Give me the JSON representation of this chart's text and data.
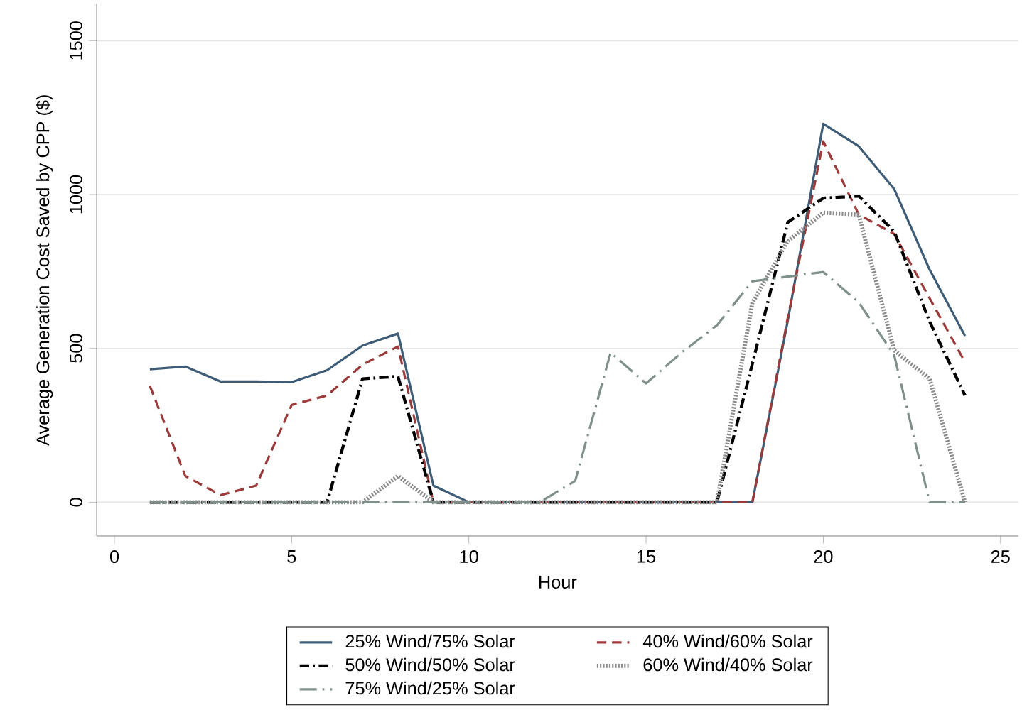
{
  "chart_data": {
    "type": "line",
    "xlabel": "Hour",
    "ylabel": "Average Generation Cost Saved by CPP ($)",
    "x": [
      1,
      2,
      3,
      4,
      5,
      6,
      7,
      8,
      9,
      10,
      11,
      12,
      13,
      14,
      15,
      16,
      17,
      18,
      19,
      20,
      21,
      22,
      23,
      24
    ],
    "xlim": [
      -0.5,
      25.5
    ],
    "ylim": [
      -110,
      1620
    ],
    "xticks": [
      0,
      5,
      10,
      15,
      20,
      25
    ],
    "yticks": [
      0,
      500,
      1000,
      1500
    ],
    "grid": "y",
    "legend": "bottom",
    "marker": "none",
    "series": [
      {
        "name": "25% Wind/75% Solar",
        "color": "#3e5c76",
        "line_style": "solid",
        "values": [
          432,
          441,
          392,
          392,
          390,
          429,
          509,
          548,
          54,
          0,
          0,
          0,
          0,
          0,
          0,
          0,
          0,
          0,
          590,
          1230,
          1157,
          1018,
          756,
          540
        ]
      },
      {
        "name": "40% Wind/60% Solar",
        "color": "#9b3a3a",
        "line_style": "dashed",
        "values": [
          378,
          85,
          23,
          54,
          316,
          347,
          447,
          506,
          0,
          0,
          0,
          0,
          0,
          0,
          0,
          0,
          0,
          0,
          600,
          1173,
          935,
          872,
          663,
          455
        ]
      },
      {
        "name": "50% Wind/50% Solar",
        "color": "#000000",
        "line_style": "dashdot",
        "values": [
          0,
          0,
          0,
          0,
          0,
          0,
          401,
          409,
          0,
          0,
          0,
          0,
          0,
          0,
          0,
          0,
          0,
          450,
          910,
          988,
          995,
          880,
          587,
          347
        ]
      },
      {
        "name": "60% Wind/40% Solar",
        "color": "#8a8a8a",
        "line_style": "dotted",
        "values": [
          0,
          0,
          0,
          0,
          0,
          0,
          0,
          85,
          0,
          0,
          0,
          0,
          0,
          0,
          0,
          0,
          0,
          648,
          849,
          941,
          935,
          494,
          401,
          0
        ]
      },
      {
        "name": "75% Wind/25% Solar",
        "color": "#7f8f8c",
        "line_style": "longdashdot",
        "values": [
          0,
          0,
          0,
          0,
          0,
          0,
          0,
          0,
          0,
          0,
          0,
          0,
          69,
          486,
          386,
          486,
          575,
          718,
          733,
          748,
          650,
          478,
          0,
          0
        ]
      }
    ]
  }
}
